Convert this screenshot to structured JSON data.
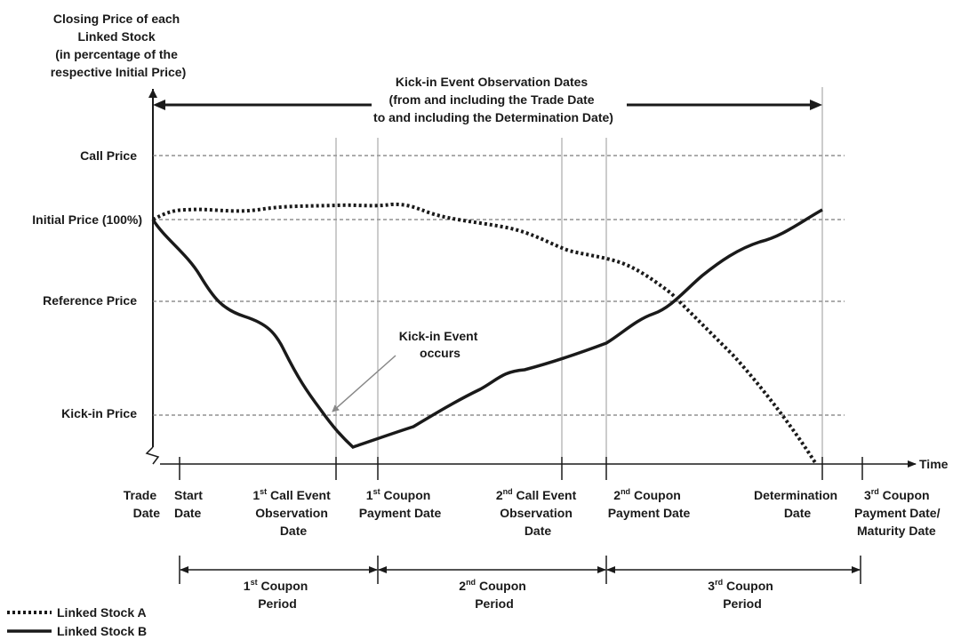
{
  "y_axis_title": [
    "Closing Price of each",
    "Linked Stock",
    "(in percentage of the",
    "respective Initial Price)"
  ],
  "kickin_period_label": [
    "Kick-in Event Observation Dates",
    "(from and including the Trade Date",
    "to and including the Determination Date)"
  ],
  "price_levels": {
    "call": "Call Price",
    "initial": "Initial Price (100%)",
    "reference": "Reference Price",
    "kickin": "Kick-in Price"
  },
  "kickin_event_label": [
    "Kick-in Event",
    "occurs"
  ],
  "x_axis_title": "Time",
  "dates": {
    "trade": [
      "Trade",
      "Date"
    ],
    "start": [
      "Start",
      "Date"
    ],
    "call1": {
      "ord": "1",
      "sup": "st",
      "l1": " Call Event",
      "l2": "Observation",
      "l3": "Date"
    },
    "coupon1": {
      "ord": "1",
      "sup": "st",
      "l1": " Coupon",
      "l2": "Payment Date"
    },
    "call2": {
      "ord": "2",
      "sup": "nd",
      "l1": " Call Event",
      "l2": "Observation",
      "l3": "Date"
    },
    "coupon2": {
      "ord": "2",
      "sup": "nd",
      "l1": " Coupon",
      "l2": "Payment Date"
    },
    "determination": [
      "Determination",
      "Date"
    ],
    "coupon3": {
      "ord": "3",
      "sup": "rd",
      "l1": " Coupon",
      "l2": "Payment Date/",
      "l3": "Maturity Date"
    }
  },
  "coupon_periods": [
    {
      "ord": "1",
      "sup": "st",
      "rest": " Coupon",
      "l2": "Period"
    },
    {
      "ord": "2",
      "sup": "nd",
      "rest": " Coupon",
      "l2": "Period"
    },
    {
      "ord": "3",
      "sup": "rd",
      "rest": " Coupon",
      "l2": "Period"
    }
  ],
  "legend": {
    "stock_a": "Linked Stock A",
    "stock_b": "Linked Stock B"
  },
  "colors": {
    "ink": "#1a1a1a",
    "grid": "#7a7a7a"
  }
}
